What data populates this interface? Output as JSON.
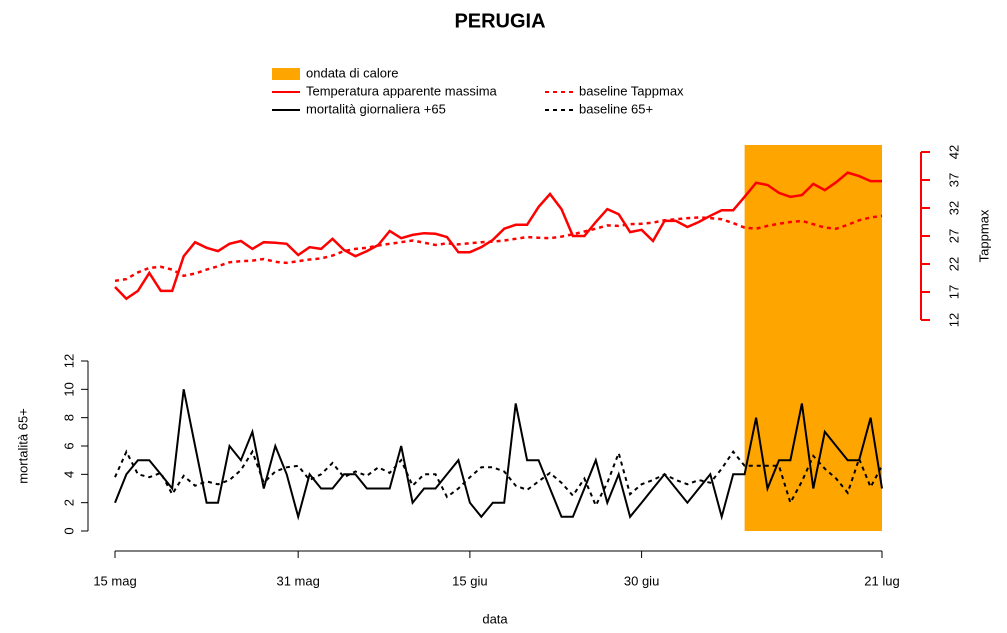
{
  "chart_data": {
    "type": "line",
    "title": "PERUGIA",
    "xlabel": "data",
    "ylabel": "mortalità 65+",
    "y2label": "Tappmax",
    "y2color": "#ff0000",
    "categories": [
      "15 mag",
      null,
      null,
      null,
      null,
      null,
      null,
      null,
      null,
      null,
      null,
      null,
      null,
      null,
      null,
      null,
      "31 mag",
      null,
      null,
      null,
      null,
      null,
      null,
      null,
      null,
      null,
      null,
      null,
      null,
      null,
      null,
      "15 giu",
      null,
      null,
      null,
      null,
      null,
      null,
      null,
      null,
      null,
      null,
      null,
      null,
      null,
      null,
      "30 giu",
      null,
      null,
      null,
      null,
      null,
      null,
      null,
      null,
      null,
      null,
      null,
      null,
      null,
      null,
      null,
      null,
      null,
      null,
      null,
      null,
      "21 lug"
    ],
    "heatwave": {
      "name": "ondata di calore",
      "color": "#ffa500",
      "start": 55,
      "end": 67
    },
    "series": [
      {
        "name": "Temperatura apparente massima",
        "color": "#ff0000",
        "axis": "y2",
        "dashed": false,
        "values": [
          17.9,
          15.8,
          17.2,
          20.4,
          17.2,
          17.2,
          23.4,
          25.9,
          24.9,
          24.3,
          25.6,
          26.1,
          24.7,
          25.9,
          25.8,
          25.6,
          23.6,
          25.0,
          24.7,
          26.5,
          24.5,
          23.4,
          24.3,
          25.4,
          27.9,
          26.6,
          27.2,
          27.5,
          27.4,
          26.8,
          24.1,
          24.1,
          25.0,
          26.3,
          28.3,
          29.0,
          29.0,
          32.2,
          34.5,
          31.8,
          27.0,
          27.0,
          29.5,
          31.8,
          30.9,
          27.7,
          28.1,
          26.1,
          29.7,
          29.7,
          28.6,
          29.5,
          30.6,
          31.6,
          31.6,
          34.0,
          36.5,
          36.1,
          34.7,
          34.0,
          34.3,
          36.3,
          35.2,
          36.6,
          38.3,
          37.7,
          36.8,
          36.8
        ]
      },
      {
        "name": "baseline Tappmax",
        "color": "#ff0000",
        "axis": "y2",
        "dashed": true,
        "values": [
          19.0,
          19.3,
          20.5,
          21.3,
          21.5,
          21.0,
          19.9,
          20.3,
          21.0,
          21.6,
          22.3,
          22.5,
          22.6,
          22.9,
          22.4,
          22.2,
          22.5,
          22.8,
          23.0,
          23.5,
          24.3,
          24.7,
          24.9,
          25.3,
          25.6,
          25.9,
          26.2,
          25.8,
          25.4,
          25.7,
          25.5,
          25.7,
          25.9,
          26.0,
          26.2,
          26.5,
          26.8,
          26.7,
          26.6,
          26.9,
          27.3,
          27.8,
          28.3,
          28.9,
          28.8,
          29.1,
          29.2,
          29.4,
          29.8,
          30.0,
          30.2,
          30.3,
          30.2,
          30.0,
          29.3,
          28.5,
          28.3,
          28.8,
          29.2,
          29.5,
          29.7,
          29.1,
          28.5,
          28.3,
          29.0,
          29.8,
          30.3,
          30.6
        ]
      },
      {
        "name": "mortalità giornaliera +65",
        "color": "#000000",
        "axis": "y",
        "dashed": false,
        "values": [
          2,
          4,
          5,
          5,
          4,
          3,
          10,
          6,
          2,
          2,
          6,
          5,
          7,
          3,
          6,
          4,
          1,
          4,
          3,
          3,
          4,
          4,
          3,
          3,
          3,
          6,
          2,
          3,
          3,
          4,
          5,
          2,
          1,
          2,
          2,
          9,
          5,
          5,
          3,
          1,
          1,
          3,
          5,
          2,
          4,
          1,
          2,
          3,
          4,
          3,
          2,
          3,
          4,
          1,
          4,
          4,
          8,
          3,
          5,
          5,
          9,
          3,
          7,
          6,
          5,
          5,
          8,
          3
        ]
      },
      {
        "name": "baseline 65+",
        "color": "#000000",
        "axis": "y",
        "dashed": true,
        "values": [
          3.8,
          5.6,
          4.0,
          3.8,
          4.1,
          2.6,
          3.9,
          3.2,
          3.5,
          3.3,
          3.6,
          4.3,
          5.6,
          3.4,
          4.2,
          4.5,
          4.6,
          3.6,
          4.0,
          4.8,
          3.8,
          4.2,
          3.9,
          4.5,
          4.1,
          5.0,
          3.2,
          4.0,
          4.0,
          2.4,
          3.0,
          3.8,
          4.5,
          4.5,
          4.2,
          3.2,
          2.9,
          3.5,
          4.1,
          3.4,
          2.5,
          3.7,
          1.8,
          3.4,
          5.5,
          2.6,
          3.3,
          3.6,
          4.0,
          3.6,
          3.3,
          3.6,
          3.4,
          4.4,
          5.6,
          4.6,
          4.6,
          4.6,
          4.6,
          2.0,
          3.5,
          5.3,
          4.4,
          3.7,
          2.7,
          5.1,
          3.1,
          4.6
        ]
      }
    ],
    "ylim": [
      0,
      12
    ],
    "yticks": [
      0,
      2,
      4,
      6,
      8,
      10,
      12
    ],
    "y2lim": [
      12,
      42
    ],
    "y2ticks": [
      12,
      17,
      22,
      27,
      32,
      37,
      42
    ]
  }
}
